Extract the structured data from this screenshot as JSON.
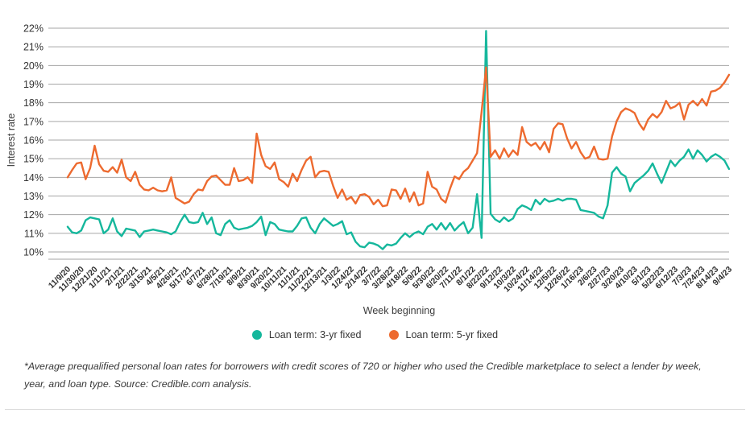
{
  "footnote": "*Average prequalified personal loan rates for borrowers with credit scores of 720 or higher who used the Credible marketplace to select a lender by week, year, and loan type. Source: Credible.com analysis.",
  "chart_data": {
    "type": "line",
    "title": "",
    "xlabel": "Week beginning",
    "ylabel": "Interest rate",
    "ylim": [
      10,
      22
    ],
    "y_tick_labels": [
      "22%",
      "21%",
      "20%",
      "19%",
      "18%",
      "17%",
      "16%",
      "15%",
      "14%",
      "13%",
      "12%",
      "11%",
      "10%"
    ],
    "grid": true,
    "grid_color": "#a6a6a6",
    "legend_position": "bottom",
    "x_tick_every": 3,
    "x_tick_labels": [
      "11/9/20",
      "11/30/20",
      "12/21/20",
      "1/11/21",
      "2/1/21",
      "2/22/21",
      "3/15/21",
      "4/5/21",
      "4/26/21",
      "5/17/21",
      "6/7/21",
      "6/28/21",
      "7/19/21",
      "8/9/21",
      "8/30/21",
      "9/20/21",
      "10/11/21",
      "11/1/21",
      "11/22/21",
      "12/13/21",
      "1/3/22",
      "1/24/22",
      "2/14/22",
      "3/7/22",
      "3/28/22",
      "4/18/22",
      "5/9/22",
      "5/30/22",
      "6/20/22",
      "7/11/22",
      "8/1/22",
      "8/22/22",
      "9/12/22",
      "10/3/22",
      "10/24/22",
      "11/14/22",
      "12/5/22",
      "12/26/22",
      "1/16/23",
      "2/6/23",
      "2/27/23",
      "3/20/23",
      "4/10/23",
      "5/1/23",
      "5/22/23",
      "6/12/23",
      "7/3/23",
      "7/24/23",
      "8/14/23",
      "9/4/23"
    ],
    "x": [
      "11/9/20",
      "11/16/20",
      "11/23/20",
      "11/30/20",
      "12/7/20",
      "12/14/20",
      "12/21/20",
      "12/28/20",
      "1/4/21",
      "1/11/21",
      "1/18/21",
      "1/25/21",
      "2/1/21",
      "2/8/21",
      "2/15/21",
      "2/22/21",
      "3/1/21",
      "3/8/21",
      "3/15/21",
      "3/22/21",
      "3/29/21",
      "4/5/21",
      "4/12/21",
      "4/19/21",
      "4/26/21",
      "5/3/21",
      "5/10/21",
      "5/17/21",
      "5/24/21",
      "5/31/21",
      "6/7/21",
      "6/14/21",
      "6/21/21",
      "6/28/21",
      "7/5/21",
      "7/12/21",
      "7/19/21",
      "7/26/21",
      "8/2/21",
      "8/9/21",
      "8/16/21",
      "8/23/21",
      "8/30/21",
      "9/6/21",
      "9/13/21",
      "9/20/21",
      "9/27/21",
      "10/4/21",
      "10/11/21",
      "10/18/21",
      "10/25/21",
      "11/1/21",
      "11/8/21",
      "11/15/21",
      "11/22/21",
      "11/29/21",
      "12/6/21",
      "12/13/21",
      "12/20/21",
      "12/27/21",
      "1/3/22",
      "1/10/22",
      "1/17/22",
      "1/24/22",
      "1/31/22",
      "2/7/22",
      "2/14/22",
      "2/21/22",
      "2/28/22",
      "3/7/22",
      "3/14/22",
      "3/21/22",
      "3/28/22",
      "4/4/22",
      "4/11/22",
      "4/18/22",
      "4/25/22",
      "5/2/22",
      "5/9/22",
      "5/16/22",
      "5/23/22",
      "5/30/22",
      "6/6/22",
      "6/13/22",
      "6/20/22",
      "6/27/22",
      "7/4/22",
      "7/11/22",
      "7/18/22",
      "7/25/22",
      "8/1/22",
      "8/8/22",
      "8/15/22",
      "8/22/22",
      "8/29/22",
      "9/5/22",
      "9/12/22",
      "9/19/22",
      "9/26/22",
      "10/3/22",
      "10/10/22",
      "10/17/22",
      "10/24/22",
      "10/31/22",
      "11/7/22",
      "11/14/22",
      "11/21/22",
      "11/28/22",
      "12/5/22",
      "12/12/22",
      "12/19/22",
      "12/26/22",
      "1/2/23",
      "1/9/23",
      "1/16/23",
      "1/23/23",
      "1/30/23",
      "2/6/23",
      "2/13/23",
      "2/20/23",
      "2/27/23",
      "3/6/23",
      "3/13/23",
      "3/20/23",
      "3/27/23",
      "4/3/23",
      "4/10/23",
      "4/17/23",
      "4/24/23",
      "5/1/23",
      "5/8/23",
      "5/15/23",
      "5/22/23",
      "5/29/23",
      "6/5/23",
      "6/12/23",
      "6/19/23",
      "6/26/23",
      "7/3/23",
      "7/10/23",
      "7/17/23",
      "7/24/23",
      "7/31/23",
      "8/7/23",
      "8/14/23",
      "8/21/23",
      "8/28/23",
      "9/4/23"
    ],
    "series": [
      {
        "name": "Loan term: 3-yr fixed",
        "color": "#15b79c",
        "values": [
          11.35,
          11.05,
          11.0,
          11.15,
          11.7,
          11.85,
          11.8,
          11.75,
          11.0,
          11.2,
          11.8,
          11.1,
          10.85,
          11.25,
          11.2,
          11.15,
          10.8,
          11.1,
          11.15,
          11.2,
          11.15,
          11.1,
          11.05,
          10.95,
          11.1,
          11.6,
          12.0,
          11.6,
          11.55,
          11.6,
          12.1,
          11.5,
          11.85,
          11.0,
          10.9,
          11.5,
          11.7,
          11.3,
          11.2,
          11.25,
          11.3,
          11.4,
          11.6,
          11.9,
          10.9,
          11.6,
          11.5,
          11.2,
          11.15,
          11.1,
          11.1,
          11.4,
          11.8,
          11.85,
          11.3,
          11.0,
          11.5,
          11.8,
          11.6,
          11.4,
          11.5,
          11.65,
          10.95,
          11.05,
          10.55,
          10.3,
          10.25,
          10.5,
          10.45,
          10.35,
          10.15,
          10.4,
          10.35,
          10.45,
          10.75,
          11.0,
          10.8,
          11.0,
          11.1,
          10.95,
          11.35,
          11.5,
          11.2,
          11.55,
          11.2,
          11.55,
          11.15,
          11.4,
          11.6,
          11.0,
          11.3,
          13.1,
          10.75,
          21.85,
          12.05,
          11.75,
          11.6,
          11.85,
          11.65,
          11.8,
          12.3,
          12.5,
          12.4,
          12.25,
          12.8,
          12.55,
          12.85,
          12.7,
          12.75,
          12.85,
          12.75,
          12.85,
          12.85,
          12.8,
          12.25,
          12.2,
          12.15,
          12.1,
          11.9,
          11.8,
          12.5,
          14.25,
          14.55,
          14.2,
          14.05,
          13.25,
          13.7,
          13.9,
          14.1,
          14.35,
          14.75,
          14.2,
          13.7,
          14.3,
          14.9,
          14.6,
          14.9,
          15.1,
          15.5,
          15.0,
          15.45,
          15.2,
          14.85,
          15.1,
          15.25,
          15.1,
          14.9,
          14.45
        ]
      },
      {
        "name": "Loan term: 5-yr fixed",
        "color": "#ed6a2f",
        "values": [
          14.0,
          14.4,
          14.75,
          14.8,
          13.9,
          14.5,
          15.7,
          14.7,
          14.35,
          14.3,
          14.55,
          14.25,
          14.95,
          14.0,
          13.8,
          14.3,
          13.6,
          13.35,
          13.3,
          13.45,
          13.3,
          13.25,
          13.3,
          14.0,
          12.9,
          12.75,
          12.6,
          12.7,
          13.1,
          13.35,
          13.3,
          13.8,
          14.05,
          14.1,
          13.85,
          13.6,
          13.6,
          14.5,
          13.8,
          13.85,
          14.0,
          13.7,
          16.35,
          15.2,
          14.6,
          14.45,
          14.8,
          13.9,
          13.75,
          13.5,
          14.2,
          13.8,
          14.4,
          14.9,
          15.1,
          14.0,
          14.3,
          14.35,
          14.3,
          13.55,
          12.9,
          13.35,
          12.8,
          12.95,
          12.6,
          13.05,
          13.1,
          12.95,
          12.55,
          12.8,
          12.45,
          12.5,
          13.35,
          13.3,
          12.85,
          13.4,
          12.7,
          13.2,
          12.5,
          12.6,
          14.3,
          13.5,
          13.35,
          12.85,
          12.65,
          13.4,
          14.05,
          13.9,
          14.3,
          14.5,
          14.9,
          15.3,
          17.5,
          19.9,
          15.1,
          15.45,
          15.0,
          15.55,
          15.1,
          15.45,
          15.2,
          16.7,
          15.9,
          15.7,
          15.85,
          15.5,
          15.9,
          15.35,
          16.6,
          16.9,
          16.85,
          16.1,
          15.55,
          15.9,
          15.35,
          15.0,
          15.1,
          15.65,
          15.0,
          14.95,
          15.0,
          16.2,
          17.0,
          17.5,
          17.7,
          17.6,
          17.45,
          16.9,
          16.55,
          17.1,
          17.4,
          17.2,
          17.5,
          18.1,
          17.7,
          17.8,
          18.0,
          17.1,
          17.9,
          18.1,
          17.85,
          18.2,
          17.85,
          18.6,
          18.65,
          18.8,
          19.1,
          19.5
        ]
      }
    ]
  }
}
